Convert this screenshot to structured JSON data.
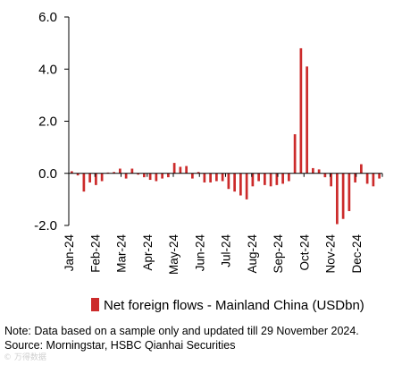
{
  "chart_data": {
    "type": "bar",
    "ylim": [
      -2.0,
      6.0
    ],
    "yticks": [
      -2.0,
      0.0,
      2.0,
      4.0,
      6.0
    ],
    "ytick_labels": [
      "-2.0",
      "0.0",
      "2.0",
      "4.0",
      "6.0"
    ],
    "xtick_labels": [
      "Jan-24",
      "Feb-24",
      "Mar-24",
      "Apr-24",
      "May-24",
      "Jun-24",
      "Jul-24",
      "Aug-24",
      "Sep-24",
      "Oct-24",
      "Nov-24",
      "Dec-24"
    ],
    "series": [
      {
        "name": "Net foreign flows - Mainland China  (USDbn)",
        "color": "#cc2b2b",
        "values": [
          0.08,
          -0.08,
          -0.7,
          -0.35,
          -0.45,
          -0.3,
          0.03,
          0.05,
          0.18,
          -0.2,
          0.18,
          -0.05,
          -0.15,
          -0.25,
          -0.3,
          -0.2,
          -0.15,
          0.4,
          0.25,
          0.28,
          -0.2,
          0.05,
          -0.35,
          -0.35,
          -0.3,
          -0.3,
          -0.6,
          -0.7,
          -0.85,
          -1.0,
          -0.5,
          -0.3,
          -0.45,
          -0.5,
          -0.45,
          -0.4,
          -0.3,
          1.5,
          4.8,
          4.1,
          0.2,
          0.15,
          -0.15,
          -0.5,
          -1.95,
          -1.75,
          -1.45,
          -0.35,
          0.35,
          -0.4,
          -0.5,
          -0.2
        ]
      }
    ]
  },
  "legend": {
    "label": "Net foreign flows - Mainland China  (USDbn)"
  },
  "notes": {
    "line1": "Note: Data based on a sample only and updated till 29 November 2024.",
    "line2": "Source: Morningstar, HSBC Qianhai Securities"
  },
  "watermark": "© 万得数据"
}
